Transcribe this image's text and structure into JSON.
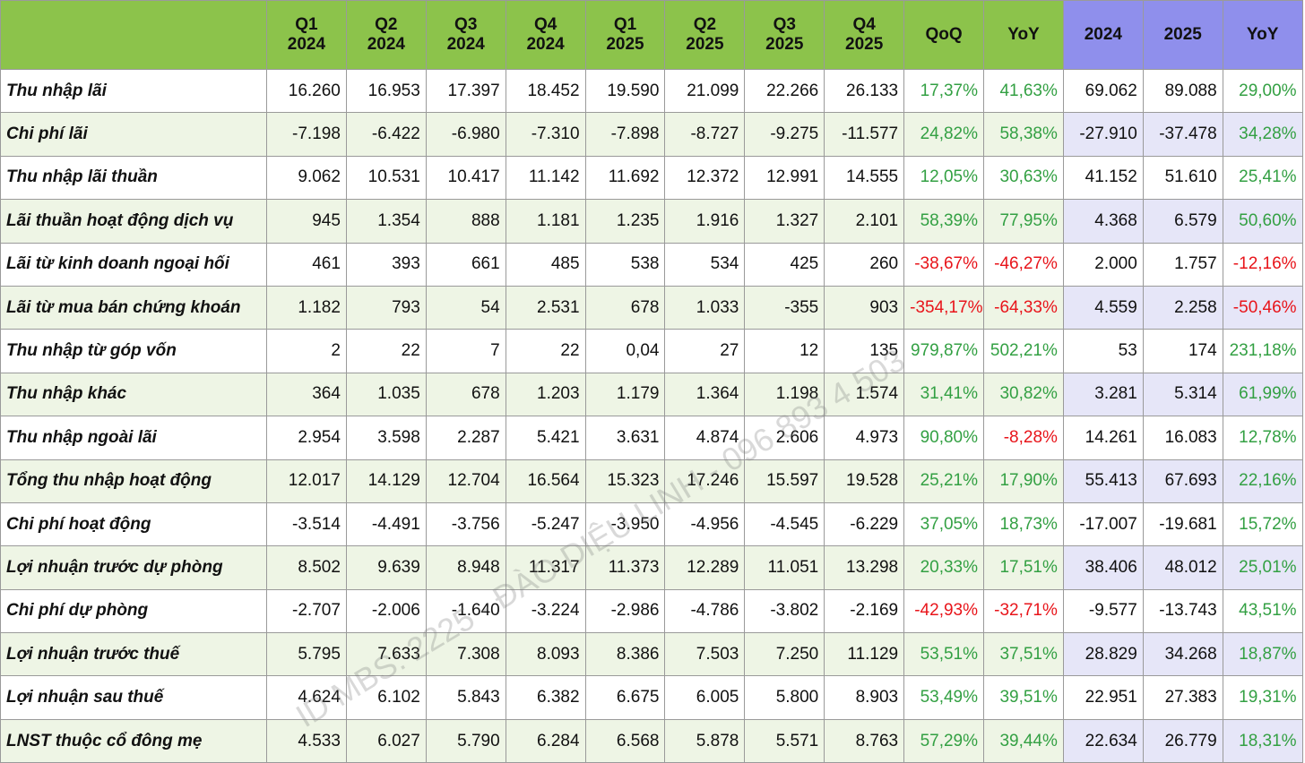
{
  "table": {
    "header": [
      [
        "Q1",
        "2024"
      ],
      [
        "Q2",
        "2024"
      ],
      [
        "Q3",
        "2024"
      ],
      [
        "Q4",
        "2024"
      ],
      [
        "Q1",
        "2025"
      ],
      [
        "Q2",
        "2025"
      ],
      [
        "Q3",
        "2025"
      ],
      [
        "Q4",
        "2025"
      ],
      [
        "QoQ"
      ],
      [
        "YoY"
      ],
      [
        "2024"
      ],
      [
        "2025"
      ],
      [
        "YoY"
      ]
    ],
    "rows": [
      [
        "Thu nhập lãi",
        "16.260",
        "16.953",
        "17.397",
        "18.452",
        "19.590",
        "21.099",
        "22.266",
        "26.133",
        "17,37%",
        "41,63%",
        "69.062",
        "89.088",
        "29,00%"
      ],
      [
        "Chi phí lãi",
        "-7.198",
        "-6.422",
        "-6.980",
        "-7.310",
        "-7.898",
        "-8.727",
        "-9.275",
        "-11.577",
        "24,82%",
        "58,38%",
        "-27.910",
        "-37.478",
        "34,28%"
      ],
      [
        "Thu nhập lãi thuần",
        "9.062",
        "10.531",
        "10.417",
        "11.142",
        "11.692",
        "12.372",
        "12.991",
        "14.555",
        "12,05%",
        "30,63%",
        "41.152",
        "51.610",
        "25,41%"
      ],
      [
        "Lãi thuần hoạt động dịch vụ",
        "945",
        "1.354",
        "888",
        "1.181",
        "1.235",
        "1.916",
        "1.327",
        "2.101",
        "58,39%",
        "77,95%",
        "4.368",
        "6.579",
        "50,60%"
      ],
      [
        "Lãi từ kinh doanh ngoại hối",
        "461",
        "393",
        "661",
        "485",
        "538",
        "534",
        "425",
        "260",
        "-38,67%",
        "-46,27%",
        "2.000",
        "1.757",
        "-12,16%"
      ],
      [
        "Lãi từ mua bán chứng khoán",
        "1.182",
        "793",
        "54",
        "2.531",
        "678",
        "1.033",
        "-355",
        "903",
        "-354,17%",
        "-64,33%",
        "4.559",
        "2.258",
        "-50,46%"
      ],
      [
        "Thu nhập từ góp vốn",
        "2",
        "22",
        "7",
        "22",
        "0,04",
        "27",
        "12",
        "135",
        "979,87%",
        "502,21%",
        "53",
        "174",
        "231,18%"
      ],
      [
        "Thu nhập khác",
        "364",
        "1.035",
        "678",
        "1.203",
        "1.179",
        "1.364",
        "1.198",
        "1.574",
        "31,41%",
        "30,82%",
        "3.281",
        "5.314",
        "61,99%"
      ],
      [
        "Thu nhập ngoài lãi",
        "2.954",
        "3.598",
        "2.287",
        "5.421",
        "3.631",
        "4.874",
        "2.606",
        "4.973",
        "90,80%",
        "-8,28%",
        "14.261",
        "16.083",
        "12,78%"
      ],
      [
        "Tổng thu nhập hoạt động",
        "12.017",
        "14.129",
        "12.704",
        "16.564",
        "15.323",
        "17.246",
        "15.597",
        "19.528",
        "25,21%",
        "17,90%",
        "55.413",
        "67.693",
        "22,16%"
      ],
      [
        "Chi phí hoạt động",
        "-3.514",
        "-4.491",
        "-3.756",
        "-5.247",
        "-3.950",
        "-4.956",
        "-4.545",
        "-6.229",
        "37,05%",
        "18,73%",
        "-17.007",
        "-19.681",
        "15,72%"
      ],
      [
        "Lợi nhuận trước dự phòng",
        "8.502",
        "9.639",
        "8.948",
        "11.317",
        "11.373",
        "12.289",
        "11.051",
        "13.298",
        "20,33%",
        "17,51%",
        "38.406",
        "48.012",
        "25,01%"
      ],
      [
        "Chi phí dự phòng",
        "-2.707",
        "-2.006",
        "-1.640",
        "-3.224",
        "-2.986",
        "-4.786",
        "-3.802",
        "-2.169",
        "-42,93%",
        "-32,71%",
        "-9.577",
        "-13.743",
        "43,51%"
      ],
      [
        "Lợi nhuận trước thuế",
        "5.795",
        "7.633",
        "7.308",
        "8.093",
        "8.386",
        "7.503",
        "7.250",
        "11.129",
        "53,51%",
        "37,51%",
        "28.829",
        "34.268",
        "18,87%"
      ],
      [
        "Lợi nhuận sau thuế",
        "4.624",
        "6.102",
        "5.843",
        "6.382",
        "6.675",
        "6.005",
        "5.800",
        "8.903",
        "53,49%",
        "39,51%",
        "22.951",
        "27.383",
        "19,31%"
      ],
      [
        "LNST thuộc cổ đông mẹ",
        "4.533",
        "6.027",
        "5.790",
        "6.284",
        "6.568",
        "5.878",
        "5.571",
        "8.763",
        "57,29%",
        "39,44%",
        "22.634",
        "26.779",
        "18,31%"
      ]
    ]
  },
  "watermark": "ID MBS: 2225 - ĐÀO DIỆU LINH - 096 893 4 503"
}
